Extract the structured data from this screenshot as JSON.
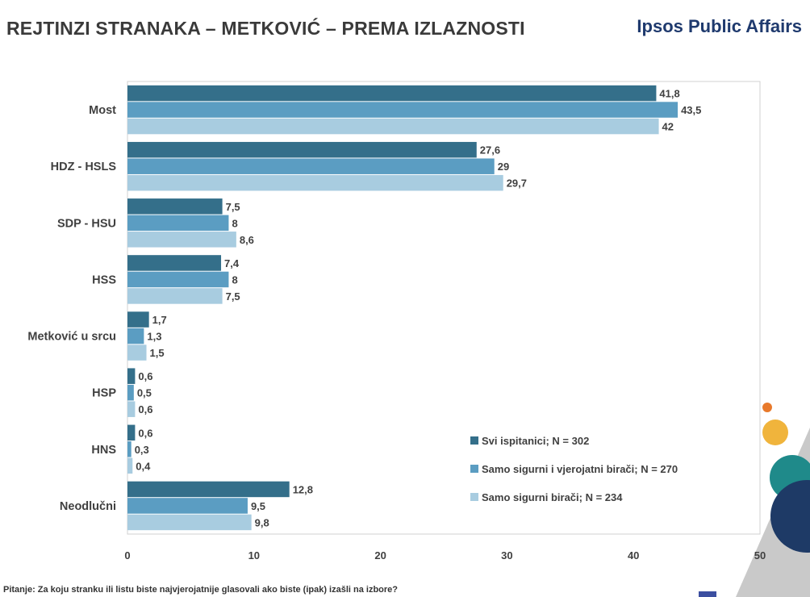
{
  "header": {
    "title": "REJTINZI STRANAKA – METKOVIĆ – PREMA IZLAZNOSTI",
    "brand": "Ipsos Public Affairs"
  },
  "footnote": "Pitanje: Za koju stranku ili listu biste najvjerojatnije glasovali ako biste (ipak) izašli na izbore?",
  "colors": {
    "series1": "#346f8a",
    "series2": "#5b9dc2",
    "series3": "#a8cce0",
    "deco_orange": "#e8792b",
    "deco_yellow": "#f0b43c",
    "deco_teal": "#1f8a8a",
    "deco_navy": "#1e3a66",
    "deco_gray": "#c9c9c9"
  },
  "chart_data": {
    "type": "bar",
    "orientation": "horizontal",
    "categories": [
      "Most",
      "HDZ - HSLS",
      "SDP - HSU",
      "HSS",
      "Metković u srcu",
      "HSP",
      "HNS",
      "Neodlučni"
    ],
    "series": [
      {
        "name": "Svi ispitanici; N = 302",
        "values": [
          41.8,
          27.6,
          7.5,
          7.4,
          1.7,
          0.6,
          0.6,
          12.8
        ],
        "labels": [
          "41,8",
          "27,6",
          "7,5",
          "7,4",
          "1,7",
          "0,6",
          "0,6",
          "12,8"
        ]
      },
      {
        "name": "Samo sigurni i vjerojatni birači; N = 270",
        "values": [
          43.5,
          29,
          8,
          8,
          1.3,
          0.5,
          0.3,
          9.5
        ],
        "labels": [
          "43,5",
          "29",
          "8",
          "8",
          "1,3",
          "0,5",
          "0,3",
          "9,5"
        ]
      },
      {
        "name": "Samo sigurni birači; N = 234",
        "values": [
          42,
          29.7,
          8.6,
          7.5,
          1.5,
          0.6,
          0.4,
          9.8
        ],
        "labels": [
          "42",
          "29,7",
          "8,6",
          "7,5",
          "1,5",
          "0,6",
          "0,4",
          "9,8"
        ]
      }
    ],
    "xlim": [
      0,
      50
    ],
    "xticks": [
      0,
      10,
      20,
      30,
      40,
      50
    ],
    "legend_position": "bottom-right inside plot"
  }
}
